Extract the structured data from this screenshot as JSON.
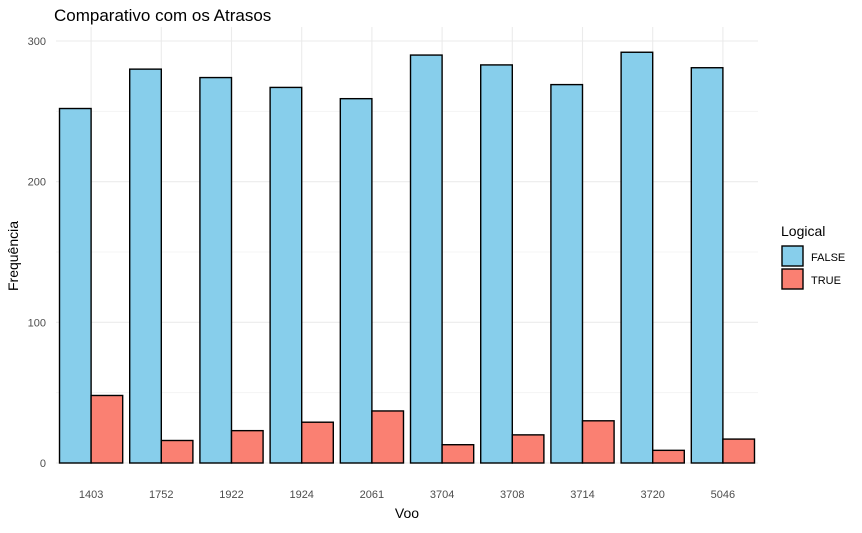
{
  "chart_data": {
    "type": "bar",
    "title": "Comparativo com os Atrasos",
    "xlabel": "Voo",
    "ylabel": "Frequência",
    "categories": [
      "1403",
      "1752",
      "1922",
      "1924",
      "2061",
      "3704",
      "3708",
      "3714",
      "3720",
      "5046"
    ],
    "series": [
      {
        "name": "FALSE",
        "color": "#87CEEB",
        "values": [
          252,
          280,
          274,
          267,
          259,
          290,
          283,
          269,
          292,
          281
        ]
      },
      {
        "name": "TRUE",
        "color": "#FA8072",
        "values": [
          48,
          16,
          23,
          29,
          37,
          13,
          20,
          30,
          9,
          17
        ]
      }
    ],
    "ylim": [
      0,
      300
    ],
    "yticks": [
      0,
      100,
      200,
      300
    ],
    "grid": true,
    "legend": {
      "title": "Logical",
      "position": "right"
    }
  }
}
